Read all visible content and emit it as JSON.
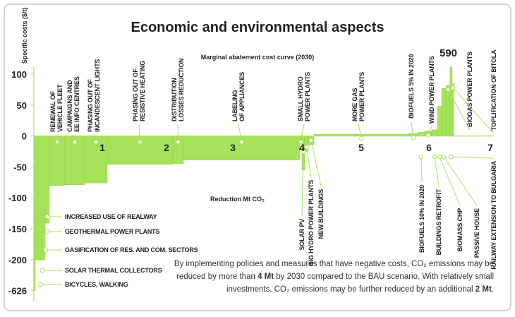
{
  "chart_data": {
    "type": "mac",
    "title": "Economic and environmental aspects",
    "subtitle": "Marginal abatement cost curve (2030)",
    "y_label": "Specific costs ($/t)",
    "x_label": "Reduction Mt CO₂",
    "color": "#a6e35a",
    "categories": [
      "BICYCLES, WALKING",
      "SOLAR THERMAL COLLECTORS",
      "GASIFICATION OF RES. AND COM. SECTORS",
      "GEOTHERMAL POWER PLANTS",
      "INCREASED USE OF REALWAY",
      [
        "RENEWAL OF",
        "VEHICLE FLEET"
      ],
      [
        "CAMPAIGNS AND",
        "EE INFO CENTRES"
      ],
      [
        "PHASING OUT OF",
        "INCANDESCENT LIGHTS"
      ],
      [
        "PHASING OUT OF",
        "RESISTIVE HEATING"
      ],
      [
        "DISTRIBUTION",
        "LOSSES REDUCTION"
      ],
      [
        "LABELING",
        "OF APPLIANCES"
      ],
      [
        "SMALL HYDRO",
        "POWER PLANTS"
      ],
      "SOLAR PV",
      "BIG HYDRO POWER PLANTS",
      "NEW BUILDINGS",
      [
        "MORE GAS",
        "POWER PLANTS"
      ],
      "BIOFUELS 5% IN 2020",
      "BIOFUELS 10% IN 2020",
      "WIND POWER PLANTS",
      "BUILDINGS RETROFIT",
      "BIOMASS CHP",
      "PASSIVE HOUSE",
      "BIOGAS POWER PLANTS",
      "RAILWAY EXTENSION TO BULGARIA",
      "TOPLIFICATION OF BITOLA"
    ],
    "widths": [
      0.02,
      0.04,
      0.05,
      0.05,
      0.06,
      0.22,
      0.28,
      0.32,
      0.93,
      0.15,
      1.65,
      0.03,
      0.04,
      0.05,
      0.08,
      1.35,
      0.12,
      0.1,
      0.1,
      0.08,
      0.06,
      0.06,
      0.06,
      0.03,
      0.02
    ],
    "values": [
      -626,
      -205,
      -205,
      -205,
      -141,
      -80,
      -79,
      -76,
      -46,
      -45,
      -39,
      -8,
      -55,
      -25,
      -14,
      3,
      4,
      6,
      8,
      10,
      48,
      77,
      82,
      590,
      85
    ],
    "xlim": [
      0,
      6.52
    ],
    "ylim": [
      -650,
      100
    ],
    "yticks": [
      100,
      50,
      0,
      -50,
      -100,
      -150,
      -200,
      -626
    ],
    "section_labels": [
      "1",
      "2",
      "3",
      "4",
      "5",
      "6",
      "7"
    ],
    "note": [
      "By implementing policies and measures that have negative costs, CO₂ emissions may be",
      "reduced by more than ",
      "4 Mt",
      " by 2030 compared to the BAU scenario. With relatively small",
      "investments, CO₂ emissions may be further reduced by an additional ",
      "2 Mt",
      "."
    ]
  }
}
